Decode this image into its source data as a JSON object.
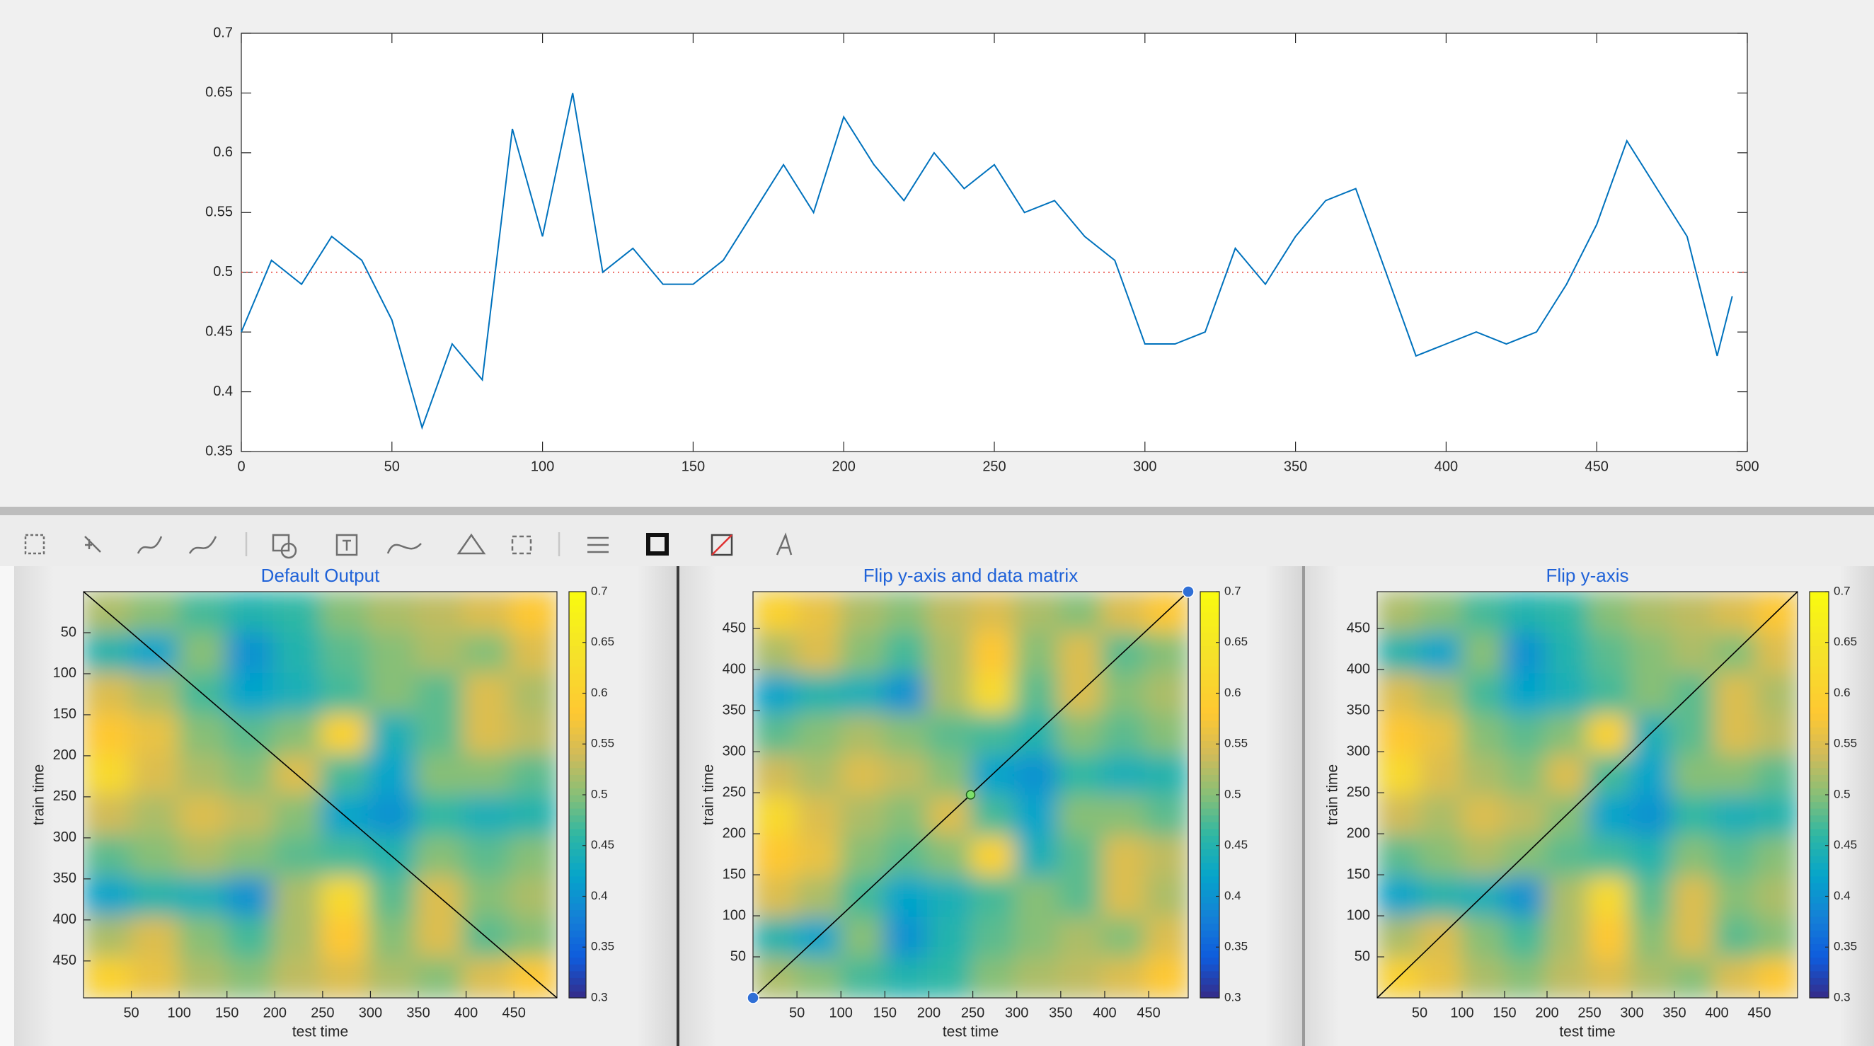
{
  "chart_data": [
    {
      "type": "line",
      "x": [
        0,
        10,
        20,
        30,
        40,
        50,
        60,
        70,
        80,
        90,
        100,
        110,
        120,
        130,
        140,
        150,
        160,
        170,
        180,
        190,
        200,
        210,
        220,
        230,
        240,
        250,
        260,
        270,
        280,
        290,
        300,
        310,
        320,
        330,
        340,
        350,
        360,
        370,
        380,
        390,
        400,
        410,
        420,
        430,
        440,
        450,
        460,
        470,
        480,
        490,
        495
      ],
      "values": [
        0.45,
        0.51,
        0.49,
        0.53,
        0.51,
        0.46,
        0.37,
        0.44,
        0.41,
        0.62,
        0.53,
        0.65,
        0.5,
        0.52,
        0.49,
        0.49,
        0.51,
        0.55,
        0.59,
        0.55,
        0.63,
        0.59,
        0.56,
        0.6,
        0.57,
        0.59,
        0.55,
        0.56,
        0.53,
        0.51,
        0.44,
        0.44,
        0.45,
        0.52,
        0.49,
        0.53,
        0.56,
        0.57,
        0.5,
        0.43,
        0.44,
        0.45,
        0.44,
        0.45,
        0.49,
        0.54,
        0.61,
        0.57,
        0.53,
        0.43,
        0.48
      ],
      "color": "#0072bd",
      "refline": 0.5,
      "refline_color": "#e8453c",
      "xlim": [
        0,
        500
      ],
      "xticks": [
        0,
        50,
        100,
        150,
        200,
        250,
        300,
        350,
        400,
        450,
        500
      ],
      "ylim": [
        0.35,
        0.7
      ],
      "yticks": [
        0.35,
        0.4,
        0.45,
        0.5,
        0.55,
        0.6,
        0.65,
        0.7
      ]
    },
    {
      "type": "heatmap",
      "title": "Default Output",
      "xlabel": "test time",
      "ylabel": "train time",
      "y_reversed": true,
      "diagonal": true,
      "handles": false,
      "colormap": "parula",
      "xlim": [
        0,
        495
      ],
      "ylim": [
        0,
        495
      ],
      "xticks": [
        50,
        100,
        150,
        200,
        250,
        300,
        350,
        400,
        450
      ],
      "yticks": [
        50,
        100,
        150,
        200,
        250,
        300,
        350,
        400,
        450
      ],
      "clim": [
        0.3,
        0.7
      ],
      "cticks": [
        0.3,
        0.35,
        0.4,
        0.45,
        0.5,
        0.55,
        0.6,
        0.65,
        0.7
      ],
      "values": [
        [
          0.52,
          0.5,
          0.47,
          0.45,
          0.46,
          0.5,
          0.52,
          0.53,
          0.55,
          0.58
        ],
        [
          0.45,
          0.42,
          0.5,
          0.4,
          0.45,
          0.48,
          0.5,
          0.52,
          0.5,
          0.55
        ],
        [
          0.55,
          0.52,
          0.47,
          0.42,
          0.44,
          0.47,
          0.5,
          0.48,
          0.55,
          0.52
        ],
        [
          0.58,
          0.56,
          0.5,
          0.48,
          0.5,
          0.6,
          0.44,
          0.48,
          0.55,
          0.53
        ],
        [
          0.62,
          0.55,
          0.52,
          0.5,
          0.55,
          0.47,
          0.42,
          0.5,
          0.5,
          0.48
        ],
        [
          0.54,
          0.52,
          0.55,
          0.53,
          0.5,
          0.42,
          0.4,
          0.46,
          0.44,
          0.45
        ],
        [
          0.48,
          0.5,
          0.52,
          0.5,
          0.48,
          0.47,
          0.45,
          0.5,
          0.48,
          0.5
        ],
        [
          0.42,
          0.45,
          0.44,
          0.4,
          0.52,
          0.62,
          0.48,
          0.55,
          0.5,
          0.52
        ],
        [
          0.52,
          0.55,
          0.5,
          0.47,
          0.52,
          0.58,
          0.5,
          0.55,
          0.48,
          0.5
        ],
        [
          0.6,
          0.56,
          0.52,
          0.5,
          0.53,
          0.55,
          0.52,
          0.5,
          0.55,
          0.58
        ]
      ]
    },
    {
      "type": "heatmap",
      "title": "Flip y-axis and data matrix",
      "xlabel": "test time",
      "ylabel": "train time",
      "y_reversed": false,
      "diagonal": true,
      "handles": true,
      "colormap": "parula",
      "xlim": [
        0,
        495
      ],
      "ylim": [
        0,
        495
      ],
      "xticks": [
        50,
        100,
        150,
        200,
        250,
        300,
        350,
        400,
        450
      ],
      "yticks": [
        50,
        100,
        150,
        200,
        250,
        300,
        350,
        400,
        450
      ],
      "clim": [
        0.3,
        0.7
      ],
      "cticks": [
        0.3,
        0.35,
        0.4,
        0.45,
        0.5,
        0.55,
        0.6,
        0.65,
        0.7
      ],
      "values": [
        [
          0.52,
          0.5,
          0.47,
          0.45,
          0.46,
          0.5,
          0.52,
          0.53,
          0.55,
          0.58
        ],
        [
          0.45,
          0.42,
          0.5,
          0.4,
          0.45,
          0.48,
          0.5,
          0.52,
          0.5,
          0.55
        ],
        [
          0.55,
          0.52,
          0.47,
          0.42,
          0.44,
          0.47,
          0.5,
          0.48,
          0.55,
          0.52
        ],
        [
          0.58,
          0.56,
          0.5,
          0.48,
          0.5,
          0.6,
          0.44,
          0.48,
          0.55,
          0.53
        ],
        [
          0.62,
          0.55,
          0.52,
          0.5,
          0.55,
          0.47,
          0.42,
          0.5,
          0.5,
          0.48
        ],
        [
          0.54,
          0.52,
          0.55,
          0.53,
          0.5,
          0.42,
          0.4,
          0.46,
          0.44,
          0.45
        ],
        [
          0.48,
          0.5,
          0.52,
          0.5,
          0.48,
          0.47,
          0.45,
          0.5,
          0.48,
          0.5
        ],
        [
          0.42,
          0.45,
          0.44,
          0.4,
          0.52,
          0.62,
          0.48,
          0.55,
          0.5,
          0.52
        ],
        [
          0.52,
          0.55,
          0.5,
          0.47,
          0.52,
          0.58,
          0.5,
          0.55,
          0.48,
          0.5
        ],
        [
          0.6,
          0.56,
          0.52,
          0.5,
          0.53,
          0.55,
          0.52,
          0.5,
          0.55,
          0.58
        ]
      ]
    },
    {
      "type": "heatmap",
      "title": "Flip y-axis",
      "xlabel": "test time",
      "ylabel": "train time",
      "y_reversed": false,
      "diagonal": true,
      "handles": false,
      "colormap": "parula",
      "xlim": [
        0,
        495
      ],
      "ylim": [
        0,
        495
      ],
      "xticks": [
        50,
        100,
        150,
        200,
        250,
        300,
        350,
        400,
        450
      ],
      "yticks": [
        50,
        100,
        150,
        200,
        250,
        300,
        350,
        400,
        450
      ],
      "clim": [
        0.3,
        0.7
      ],
      "cticks": [
        0.3,
        0.35,
        0.4,
        0.45,
        0.5,
        0.55,
        0.6,
        0.65,
        0.7
      ],
      "values": [
        [
          0.6,
          0.56,
          0.52,
          0.5,
          0.53,
          0.55,
          0.52,
          0.5,
          0.55,
          0.58
        ],
        [
          0.52,
          0.55,
          0.5,
          0.47,
          0.52,
          0.58,
          0.5,
          0.55,
          0.48,
          0.5
        ],
        [
          0.42,
          0.45,
          0.44,
          0.4,
          0.52,
          0.62,
          0.48,
          0.55,
          0.5,
          0.52
        ],
        [
          0.48,
          0.5,
          0.52,
          0.5,
          0.48,
          0.47,
          0.45,
          0.5,
          0.48,
          0.5
        ],
        [
          0.54,
          0.52,
          0.55,
          0.53,
          0.5,
          0.42,
          0.4,
          0.46,
          0.44,
          0.45
        ],
        [
          0.62,
          0.55,
          0.52,
          0.5,
          0.55,
          0.47,
          0.42,
          0.5,
          0.5,
          0.48
        ],
        [
          0.58,
          0.56,
          0.5,
          0.48,
          0.5,
          0.6,
          0.44,
          0.48,
          0.55,
          0.53
        ],
        [
          0.55,
          0.52,
          0.47,
          0.42,
          0.44,
          0.47,
          0.5,
          0.48,
          0.55,
          0.52
        ],
        [
          0.45,
          0.42,
          0.5,
          0.4,
          0.45,
          0.48,
          0.5,
          0.52,
          0.5,
          0.55
        ],
        [
          0.52,
          0.5,
          0.47,
          0.45,
          0.46,
          0.5,
          0.52,
          0.53,
          0.55,
          0.58
        ]
      ]
    }
  ]
}
